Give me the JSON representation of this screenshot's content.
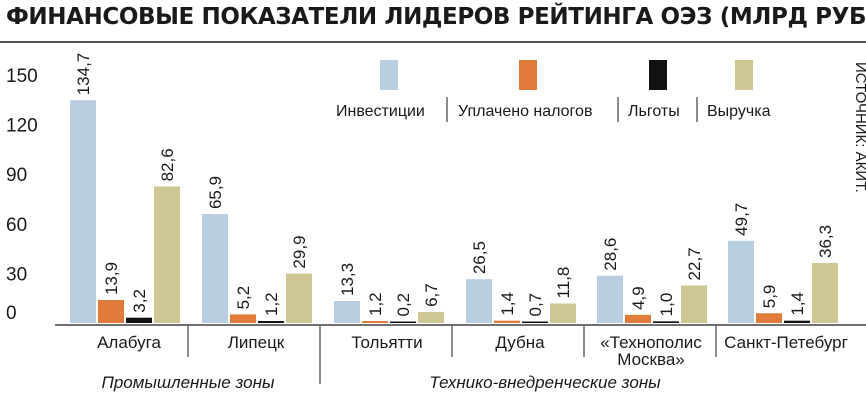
{
  "chart_data": {
    "type": "bar",
    "title": "ФИНАНСОВЫЕ ПОКАЗАТЕЛИ ЛИДЕРОВ РЕЙТИНГА ОЭЗ (МЛРД РУБ.)",
    "source": "ИСТОЧНИК: АКИТ.",
    "ylim": [
      0,
      150
    ],
    "yticks": [
      "0",
      "30",
      "60",
      "90",
      "120",
      "150"
    ],
    "grid": false,
    "legend_position": "top-right",
    "categories": [
      "Алабуга",
      "Липецк",
      "Тольятти",
      "Дубна",
      "«Технополис Москва»",
      "Санкт-Петебург"
    ],
    "category_lines": [
      [
        "Алабуга"
      ],
      [
        "Липецк"
      ],
      [
        "Тольятти"
      ],
      [
        "Дубна"
      ],
      [
        "«Технополис",
        "Москва»"
      ],
      [
        "Санкт-Петебург"
      ]
    ],
    "groups": [
      {
        "label": "Промышленные зоны",
        "categories": [
          "Алабуга",
          "Липецк"
        ]
      },
      {
        "label": "Технико-внедренческие зоны",
        "categories": [
          "Тольятти",
          "Дубна",
          "«Технополис Москва»",
          "Санкт-Петебург"
        ]
      }
    ],
    "series": [
      {
        "name": "Инвестиции",
        "color": "#b8cde0",
        "values": [
          134.7,
          65.9,
          13.3,
          26.5,
          28.6,
          49.7
        ],
        "labels": [
          "134,7",
          "65,9",
          "13,3",
          "26,5",
          "28,6",
          "49,7"
        ]
      },
      {
        "name": "Уплачено налогов",
        "color": "#e07b39",
        "values": [
          13.9,
          5.2,
          1.2,
          1.4,
          4.9,
          5.9
        ],
        "labels": [
          "13,9",
          "5,2",
          "1,2",
          "1,4",
          "4,9",
          "5,9"
        ]
      },
      {
        "name": "Льготы",
        "color": "#111111",
        "values": [
          3.2,
          1.2,
          0.2,
          0.7,
          1.0,
          1.4
        ],
        "labels": [
          "3,2",
          "1,2",
          "0,2",
          "0,7",
          "1,0",
          "1,4"
        ]
      },
      {
        "name": "Выручка",
        "color": "#cfc793",
        "values": [
          82.6,
          29.9,
          6.7,
          11.8,
          22.7,
          36.3
        ],
        "labels": [
          "82,6",
          "29,9",
          "6,7",
          "11,8",
          "22,7",
          "36,3"
        ]
      }
    ]
  }
}
